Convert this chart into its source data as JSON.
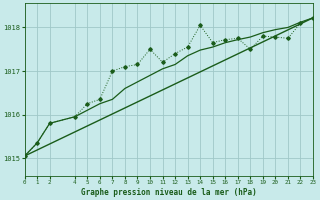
{
  "title": "Graphe pression niveau de la mer (hPa)",
  "bg_color": "#c8eaea",
  "grid_color": "#a0c8c8",
  "line_color": "#1a5c1a",
  "xlim": [
    0,
    23
  ],
  "ylim": [
    1014.6,
    1018.55
  ],
  "yticks": [
    1015,
    1016,
    1017,
    1018
  ],
  "x_ticks": [
    0,
    1,
    2,
    4,
    5,
    6,
    7,
    8,
    9,
    10,
    11,
    12,
    13,
    14,
    15,
    16,
    17,
    18,
    19,
    20,
    21,
    22,
    23
  ],
  "series_dotted": [
    [
      0,
      1015.05
    ],
    [
      1,
      1015.35
    ],
    [
      2,
      1015.8
    ],
    [
      4,
      1015.95
    ],
    [
      5,
      1016.25
    ],
    [
      6,
      1016.35
    ],
    [
      7,
      1017.0
    ],
    [
      8,
      1017.1
    ],
    [
      9,
      1017.15
    ],
    [
      10,
      1017.5
    ],
    [
      11,
      1017.2
    ],
    [
      12,
      1017.4
    ],
    [
      13,
      1017.55
    ],
    [
      14,
      1018.05
    ],
    [
      15,
      1017.65
    ],
    [
      16,
      1017.72
    ],
    [
      17,
      1017.75
    ],
    [
      18,
      1017.5
    ],
    [
      19,
      1017.8
    ],
    [
      20,
      1017.78
    ],
    [
      21,
      1017.75
    ],
    [
      22,
      1018.1
    ],
    [
      23,
      1018.22
    ]
  ],
  "series_smooth": [
    [
      0,
      1015.05
    ],
    [
      1,
      1015.35
    ],
    [
      2,
      1015.8
    ],
    [
      4,
      1015.95
    ],
    [
      5,
      1016.1
    ],
    [
      6,
      1016.25
    ],
    [
      7,
      1016.35
    ],
    [
      8,
      1016.6
    ],
    [
      9,
      1016.75
    ],
    [
      10,
      1016.9
    ],
    [
      11,
      1017.05
    ],
    [
      12,
      1017.15
    ],
    [
      13,
      1017.35
    ],
    [
      14,
      1017.48
    ],
    [
      15,
      1017.55
    ],
    [
      16,
      1017.65
    ],
    [
      17,
      1017.72
    ],
    [
      18,
      1017.78
    ],
    [
      19,
      1017.88
    ],
    [
      20,
      1017.95
    ],
    [
      21,
      1018.0
    ],
    [
      22,
      1018.12
    ],
    [
      23,
      1018.22
    ]
  ],
  "series_linear": [
    [
      0,
      1015.05
    ],
    [
      23,
      1018.22
    ]
  ]
}
